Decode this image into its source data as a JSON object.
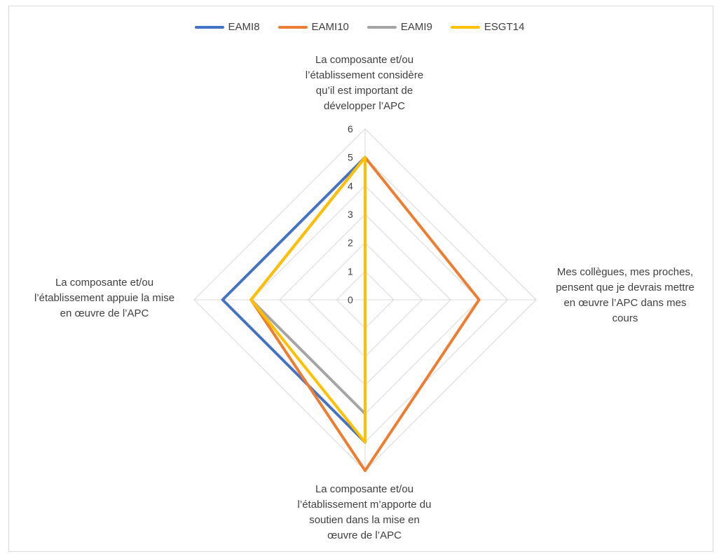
{
  "chart_data": {
    "type": "radar",
    "axes": [
      "La composante et/ou l’établissement considère qu’il est important de développer l’APC",
      "Mes collègues, mes proches, pensent que je devrais mettre en œuvre l’APC dans mes cours",
      "La composante et/ou l’établissement m’apporte du soutien dans la mise en œuvre de l’APC",
      "La composante et/ou l’établissement appuie la mise en œuvre de l’APC"
    ],
    "axis_lines": {
      "top": [
        "La composante et/ou",
        "l’établissement considère",
        "qu’il est important de",
        "développer l’APC"
      ],
      "right": [
        "Mes collègues, mes proches,",
        "pensent que je devrais mettre",
        "en œuvre l’APC dans mes",
        "cours"
      ],
      "bottom": [
        "La composante et/ou",
        "l’établissement m’apporte du",
        "soutien dans la mise en",
        "œuvre de l’APC"
      ],
      "left": [
        "La composante et/ou",
        "l’établissement appuie la mise",
        "en œuvre de l’APC"
      ]
    },
    "rlim": [
      0,
      6
    ],
    "ticks": [
      "0",
      "1",
      "2",
      "3",
      "4",
      "5",
      "6"
    ],
    "grid": true,
    "legend_position": "top",
    "series": [
      {
        "name": "EAMI8",
        "color": "#4472C4",
        "values": [
          5,
          0,
          5,
          5
        ]
      },
      {
        "name": "EAMI10",
        "color": "#ED7D31",
        "values": [
          5,
          4,
          6,
          4
        ]
      },
      {
        "name": "EAMI9",
        "color": "#A5A5A5",
        "values": [
          5,
          0,
          4,
          4
        ]
      },
      {
        "name": "ESGT14",
        "color": "#FFC000",
        "values": [
          5,
          0,
          5,
          4
        ]
      }
    ]
  }
}
